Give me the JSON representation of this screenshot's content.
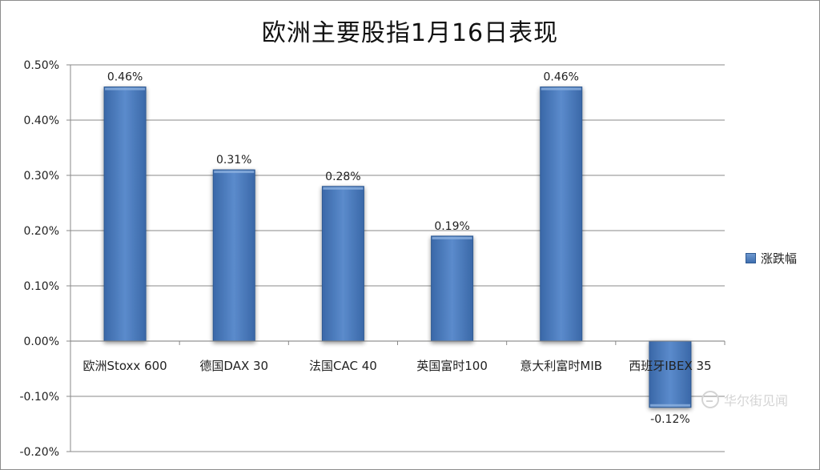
{
  "chart_data": {
    "type": "bar",
    "title": "欧洲主要股指1月16日表现",
    "categories": [
      "欧洲Stoxx 600",
      "德国DAX 30",
      "法国CAC 40",
      "英国富时100",
      "意大利富时MIB",
      "西班牙IBEX 35"
    ],
    "series": [
      {
        "name": "涨跌幅",
        "values": [
          0.46,
          0.31,
          0.28,
          0.19,
          0.46,
          -0.12
        ]
      }
    ],
    "data_labels": [
      "0.46%",
      "0.31%",
      "0.28%",
      "0.19%",
      "0.46%",
      "-0.12%"
    ],
    "y_ticks": [
      "0.50%",
      "0.40%",
      "0.30%",
      "0.20%",
      "0.10%",
      "0.00%",
      "-0.10%",
      "-0.20%"
    ],
    "y_tick_values": [
      0.5,
      0.4,
      0.3,
      0.2,
      0.1,
      0.0,
      -0.1,
      -0.2
    ],
    "ylim": [
      -0.2,
      0.5
    ],
    "grid": true,
    "legend_position": "right",
    "bar_color": "#4f81bd"
  },
  "watermark": "华尔街见闻"
}
